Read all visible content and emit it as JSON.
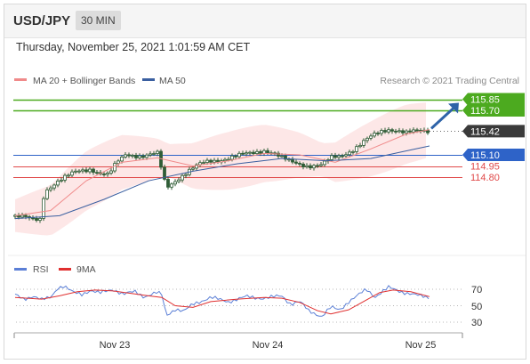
{
  "header": {
    "symbol": "USD/JPY",
    "timeframe": "30 MIN",
    "datetime": "Thursday, November 25, 2021 1:01:59 AM CET"
  },
  "credit": "Research © 2021 Trading Central",
  "colors": {
    "ma20": "#f08a8a",
    "ma50": "#3a5fa0",
    "bollinger_fill": "#fde3e3",
    "candle": "#2f5d36",
    "resistance": "#4caa1f",
    "pivot": "#2e63c8",
    "support": "#e04a4a",
    "last_price": "#3a3a3a",
    "rsi": "#5b7fd6",
    "rsi_ma": "#e03030",
    "arrow": "#2e63a8"
  },
  "chart_data": [
    {
      "type": "candlestick",
      "legend": [
        {
          "name": "MA 20 + Bollinger Bands",
          "color": "#f08a8a"
        },
        {
          "name": "MA 50",
          "color": "#3a5fa0"
        }
      ],
      "price_levels": [
        {
          "label": "115.85",
          "value": 115.85,
          "kind": "resistance"
        },
        {
          "label": "115.70",
          "value": 115.7,
          "kind": "resistance"
        },
        {
          "label": "115.42",
          "value": 115.42,
          "kind": "last"
        },
        {
          "label": "115.10",
          "value": 115.1,
          "kind": "pivot"
        },
        {
          "label": "114.95",
          "value": 114.95,
          "kind": "support"
        },
        {
          "label": "114.80",
          "value": 114.8,
          "kind": "support"
        }
      ],
      "close_path": [
        [
          0,
          114.27
        ],
        [
          10,
          114.25
        ],
        [
          20,
          114.22
        ],
        [
          28,
          114.24
        ],
        [
          33,
          114.62
        ],
        [
          45,
          114.72
        ],
        [
          58,
          114.8
        ],
        [
          70,
          114.88
        ],
        [
          85,
          114.92
        ],
        [
          95,
          114.85
        ],
        [
          105,
          114.82
        ],
        [
          115,
          115.0
        ],
        [
          125,
          115.12
        ],
        [
          135,
          115.1
        ],
        [
          145,
          115.08
        ],
        [
          160,
          115.11
        ],
        [
          170,
          114.66
        ],
        [
          182,
          114.78
        ],
        [
          195,
          114.88
        ],
        [
          210,
          114.98
        ],
        [
          220,
          115.02
        ],
        [
          235,
          115.05
        ],
        [
          250,
          115.08
        ],
        [
          265,
          115.12
        ],
        [
          280,
          115.17
        ],
        [
          290,
          115.13
        ],
        [
          300,
          115.05
        ],
        [
          310,
          115.0
        ],
        [
          320,
          114.98
        ],
        [
          330,
          114.96
        ],
        [
          345,
          114.96
        ],
        [
          355,
          115.05
        ],
        [
          365,
          115.08
        ],
        [
          380,
          115.18
        ],
        [
          395,
          115.3
        ],
        [
          410,
          115.4
        ],
        [
          420,
          115.45
        ],
        [
          430,
          115.44
        ],
        [
          440,
          115.4
        ],
        [
          455,
          115.41
        ],
        [
          466,
          115.42
        ]
      ],
      "ma50_path": [
        [
          0,
          114.24
        ],
        [
          50,
          114.28
        ],
        [
          100,
          114.5
        ],
        [
          150,
          114.75
        ],
        [
          200,
          114.88
        ],
        [
          250,
          114.98
        ],
        [
          300,
          115.05
        ],
        [
          350,
          115.02
        ],
        [
          400,
          115.05
        ],
        [
          450,
          115.18
        ],
        [
          466,
          115.22
        ]
      ],
      "ma20_path": [
        [
          0,
          114.28
        ],
        [
          40,
          114.35
        ],
        [
          80,
          114.75
        ],
        [
          120,
          115.0
        ],
        [
          160,
          115.06
        ],
        [
          200,
          114.95
        ],
        [
          240,
          115.02
        ],
        [
          280,
          115.12
        ],
        [
          320,
          115.1
        ],
        [
          360,
          115.0
        ],
        [
          400,
          115.18
        ],
        [
          440,
          115.38
        ],
        [
          466,
          115.44
        ]
      ],
      "forecast_target": 115.85,
      "x_labels": [
        "Nov 23",
        "Nov 24",
        "Nov 25"
      ]
    },
    {
      "type": "line",
      "legend": [
        {
          "name": "RSI",
          "color": "#5b7fd6"
        },
        {
          "name": "9MA",
          "color": "#e03030"
        }
      ],
      "y_ticks": [
        70,
        50,
        30
      ],
      "ylim": [
        20,
        80
      ],
      "rsi_path": [
        [
          0,
          63
        ],
        [
          10,
          58
        ],
        [
          20,
          62
        ],
        [
          30,
          57
        ],
        [
          40,
          60
        ],
        [
          48,
          72
        ],
        [
          55,
          74
        ],
        [
          65,
          66
        ],
        [
          75,
          64
        ],
        [
          85,
          69
        ],
        [
          95,
          65
        ],
        [
          110,
          70
        ],
        [
          122,
          64
        ],
        [
          135,
          67
        ],
        [
          145,
          61
        ],
        [
          160,
          66
        ],
        [
          165,
          63
        ],
        [
          170,
          38
        ],
        [
          180,
          46
        ],
        [
          190,
          43
        ],
        [
          200,
          52
        ],
        [
          210,
          56
        ],
        [
          220,
          60
        ],
        [
          240,
          55
        ],
        [
          260,
          61
        ],
        [
          280,
          59
        ],
        [
          300,
          62
        ],
        [
          310,
          52
        ],
        [
          320,
          55
        ],
        [
          330,
          44
        ],
        [
          345,
          37
        ],
        [
          355,
          48
        ],
        [
          365,
          45
        ],
        [
          375,
          55
        ],
        [
          385,
          62
        ],
        [
          395,
          70
        ],
        [
          405,
          61
        ],
        [
          420,
          72
        ],
        [
          435,
          67
        ],
        [
          450,
          63
        ],
        [
          466,
          60
        ]
      ],
      "rsi_ma_path": [
        [
          0,
          60
        ],
        [
          30,
          58
        ],
        [
          50,
          62
        ],
        [
          70,
          67
        ],
        [
          90,
          69
        ],
        [
          110,
          68
        ],
        [
          130,
          65
        ],
        [
          150,
          62
        ],
        [
          165,
          60
        ],
        [
          180,
          50
        ],
        [
          200,
          48
        ],
        [
          220,
          55
        ],
        [
          250,
          58
        ],
        [
          280,
          60
        ],
        [
          300,
          59
        ],
        [
          320,
          54
        ],
        [
          340,
          44
        ],
        [
          355,
          40
        ],
        [
          375,
          45
        ],
        [
          395,
          57
        ],
        [
          410,
          66
        ],
        [
          425,
          69
        ],
        [
          445,
          67
        ],
        [
          466,
          61
        ]
      ]
    }
  ]
}
